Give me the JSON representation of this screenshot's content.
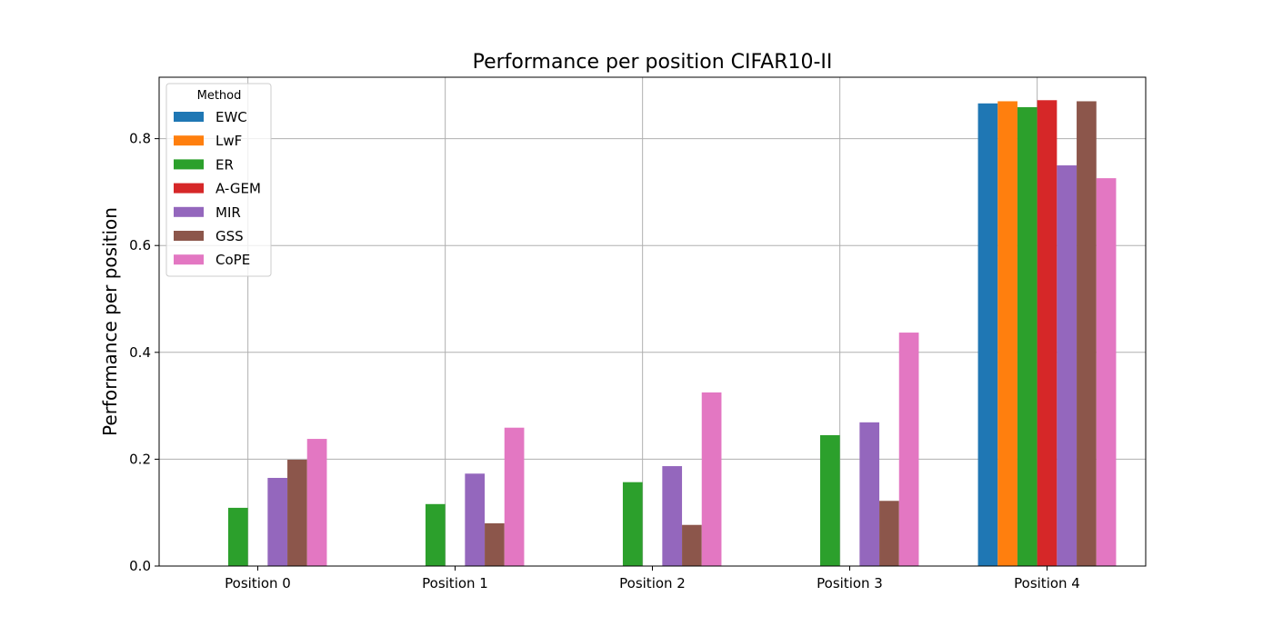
{
  "chart_data": {
    "type": "bar",
    "title": "Performance per position CIFAR10-II",
    "xlabel": "",
    "ylabel": "Performance per position",
    "categories": [
      "Position 0",
      "Position 1",
      "Position 2",
      "Position 3",
      "Position 4"
    ],
    "ylim": [
      0,
      0.915
    ],
    "yticks": [
      "0.0",
      "0.2",
      "0.4",
      "0.6",
      "0.8"
    ],
    "grid": true,
    "legend": {
      "title": "Method",
      "placement": "top-left"
    },
    "series": [
      {
        "name": "EWC",
        "color": "#1f77b4",
        "values": [
          0,
          0,
          0,
          0,
          0.866
        ]
      },
      {
        "name": "LwF",
        "color": "#ff7f0e",
        "values": [
          0,
          0,
          0,
          0,
          0.87
        ]
      },
      {
        "name": "ER",
        "color": "#2ca02c",
        "values": [
          0.109,
          0.116,
          0.157,
          0.245,
          0.859
        ]
      },
      {
        "name": "A-GEM",
        "color": "#d62728",
        "values": [
          0,
          0,
          0,
          0,
          0.872
        ]
      },
      {
        "name": "MIR",
        "color": "#9467bd",
        "values": [
          0.165,
          0.173,
          0.187,
          0.269,
          0.75
        ]
      },
      {
        "name": "GSS",
        "color": "#8c564b",
        "values": [
          0.199,
          0.08,
          0.077,
          0.122,
          0.87
        ]
      },
      {
        "name": "CoPE",
        "color": "#e377c2",
        "values": [
          0.238,
          0.259,
          0.325,
          0.437,
          0.726
        ]
      }
    ]
  }
}
